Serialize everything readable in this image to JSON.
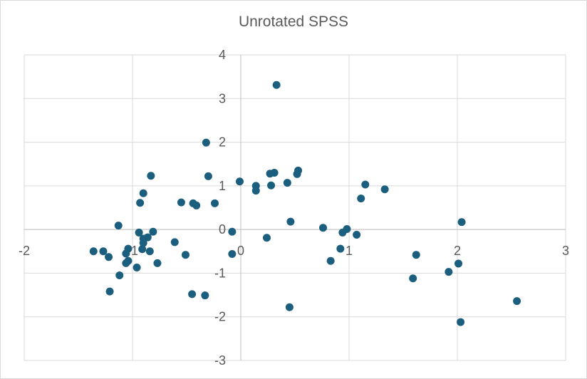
{
  "chart_data": {
    "type": "scatter",
    "title": "Unrotated SPSS",
    "xlabel": "",
    "ylabel": "",
    "xlim": [
      -2,
      3
    ],
    "ylim": [
      -3,
      4
    ],
    "x_ticks": [
      -2,
      -1,
      0,
      1,
      2,
      3
    ],
    "y_ticks": [
      -3,
      -2,
      -1,
      0,
      1,
      2,
      3,
      4
    ],
    "grid": true,
    "legend": "none",
    "marker_color": "#1b5e7e",
    "series": [
      {
        "points": [
          [
            0.33,
            3.31
          ],
          [
            -0.32,
            1.99
          ],
          [
            -0.3,
            1.22
          ],
          [
            -0.83,
            1.23
          ],
          [
            0.53,
            1.35
          ],
          [
            0.31,
            1.3
          ],
          [
            0.27,
            1.28
          ],
          [
            -0.01,
            1.1
          ],
          [
            0.43,
            1.07
          ],
          [
            0.14,
            1.0
          ],
          [
            0.28,
            1.01
          ],
          [
            0.14,
            0.89
          ],
          [
            1.15,
            1.03
          ],
          [
            1.33,
            0.92
          ],
          [
            -0.9,
            0.83
          ],
          [
            -0.93,
            0.61
          ],
          [
            -0.55,
            0.62
          ],
          [
            -0.44,
            0.6
          ],
          [
            -0.41,
            0.55
          ],
          [
            -0.24,
            0.6
          ],
          [
            0.52,
            1.27
          ],
          [
            1.11,
            0.71
          ],
          [
            0.46,
            0.18
          ],
          [
            2.04,
            0.17
          ],
          [
            0.76,
            0.04
          ],
          [
            0.98,
            0.01
          ],
          [
            0.94,
            -0.07
          ],
          [
            1.07,
            -0.12
          ],
          [
            -1.13,
            0.09
          ],
          [
            -0.94,
            -0.07
          ],
          [
            -0.81,
            -0.05
          ],
          [
            -0.86,
            -0.18
          ],
          [
            -0.9,
            -0.21
          ],
          [
            -0.9,
            -0.31
          ],
          [
            -0.91,
            -0.45
          ],
          [
            -0.84,
            -0.5
          ],
          [
            -0.61,
            -0.29
          ],
          [
            -0.51,
            -0.58
          ],
          [
            -0.08,
            -0.05
          ],
          [
            -0.08,
            -0.56
          ],
          [
            0.24,
            -0.19
          ],
          [
            0.92,
            -0.44
          ],
          [
            -1.04,
            -0.44
          ],
          [
            -1.06,
            -0.55
          ],
          [
            -1.36,
            -0.5
          ],
          [
            -1.27,
            -0.5
          ],
          [
            -1.22,
            -0.63
          ],
          [
            -1.06,
            -0.77
          ],
          [
            -1.04,
            -0.72
          ],
          [
            -0.96,
            -0.87
          ],
          [
            -0.77,
            -0.77
          ],
          [
            0.83,
            -0.72
          ],
          [
            1.62,
            -0.58
          ],
          [
            1.92,
            -0.97
          ],
          [
            2.01,
            -0.78
          ],
          [
            1.59,
            -1.12
          ],
          [
            -1.12,
            -1.05
          ],
          [
            -1.21,
            -1.42
          ],
          [
            -0.45,
            -1.48
          ],
          [
            -0.33,
            -1.51
          ],
          [
            0.45,
            -1.78
          ],
          [
            2.03,
            -2.12
          ],
          [
            2.55,
            -1.64
          ]
        ]
      }
    ]
  }
}
